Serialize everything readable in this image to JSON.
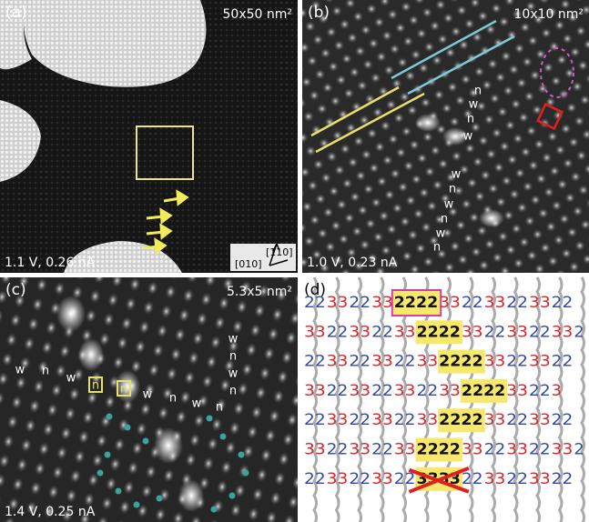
{
  "panels": [
    {
      "label": "(a)",
      "scale": "50x50 nm²",
      "bias": "1.1 V, 0.26 nA",
      "axes": [
        "[110]",
        "[010]"
      ]
    },
    {
      "label": "(b)",
      "scale": "10x10 nm²",
      "bias": "1.0 V, 0.23 nA",
      "sites": [
        "n",
        "w",
        "n",
        "w",
        "w",
        "n",
        "w",
        "n",
        "w",
        "n"
      ]
    },
    {
      "label": "(c)",
      "scale": "5.3x5 nm²",
      "bias": "1.4 V, 0.25 nA",
      "sites": [
        "w",
        "n",
        "w",
        "n",
        "n",
        "w",
        "n",
        "w",
        "n",
        "w",
        "n",
        "w",
        "n"
      ]
    },
    {
      "label": "(d)",
      "rows": [
        [
          "22",
          "33",
          "22",
          "33",
          "2222",
          "33",
          "22",
          "33",
          "22",
          "33",
          "22"
        ],
        [
          "33",
          "22",
          "33",
          "22",
          "33",
          "2222",
          "33",
          "22",
          "33",
          "22",
          "33",
          "2"
        ],
        [
          "22",
          "33",
          "22",
          "33",
          "22",
          "33",
          "2222",
          "33",
          "22",
          "33",
          "22"
        ],
        [
          "33",
          "22",
          "33",
          "22",
          "33",
          "22",
          "33",
          "2222",
          "33",
          "22",
          "3"
        ],
        [
          "22",
          "33",
          "22",
          "33",
          "22",
          "33",
          "2222",
          "33",
          "22",
          "33",
          "22"
        ],
        [
          "33",
          "22",
          "33",
          "22",
          "33",
          "2222",
          "33",
          "22",
          "33",
          "22",
          "33",
          "2"
        ],
        [
          "22",
          "33",
          "22",
          "33",
          "22",
          "3333",
          "22",
          "33",
          "22",
          "33",
          "22"
        ]
      ]
    }
  ]
}
